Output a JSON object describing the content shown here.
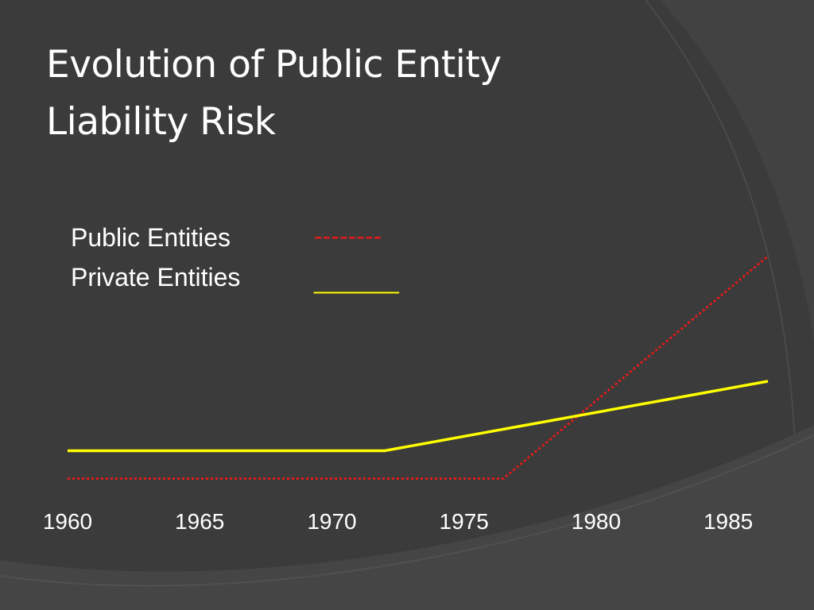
{
  "title": {
    "line1": "Evolution of Public Entity",
    "line2": "Liability Risk"
  },
  "legend": {
    "public_label": "Public Entities",
    "public_swatch": "--------",
    "private_label": "Private Entities",
    "private_swatch": "______"
  },
  "colors": {
    "background": "#3b3b3b",
    "public": "#e01b1b",
    "private": "#ffff00",
    "text": "#ffffff"
  },
  "chart_data": {
    "type": "line",
    "title": "Evolution of Public Entity Liability Risk",
    "xlabel": "",
    "ylabel": "",
    "x_ticks": [
      1960,
      1965,
      1970,
      1975,
      1980,
      1985
    ],
    "xlim": [
      1960,
      1986.5
    ],
    "ylim": [
      0,
      10
    ],
    "grid": false,
    "legend_position": "top-left",
    "series": [
      {
        "name": "Public Entities",
        "style": "dotted",
        "color": "#e01b1b",
        "points": [
          [
            1960,
            0.5
          ],
          [
            1976.5,
            0.5
          ],
          [
            1986.5,
            8.5
          ]
        ]
      },
      {
        "name": "Private Entities",
        "style": "solid",
        "color": "#ffff00",
        "points": [
          [
            1960,
            1.5
          ],
          [
            1972,
            1.5
          ],
          [
            1986.5,
            4.0
          ]
        ]
      }
    ]
  }
}
